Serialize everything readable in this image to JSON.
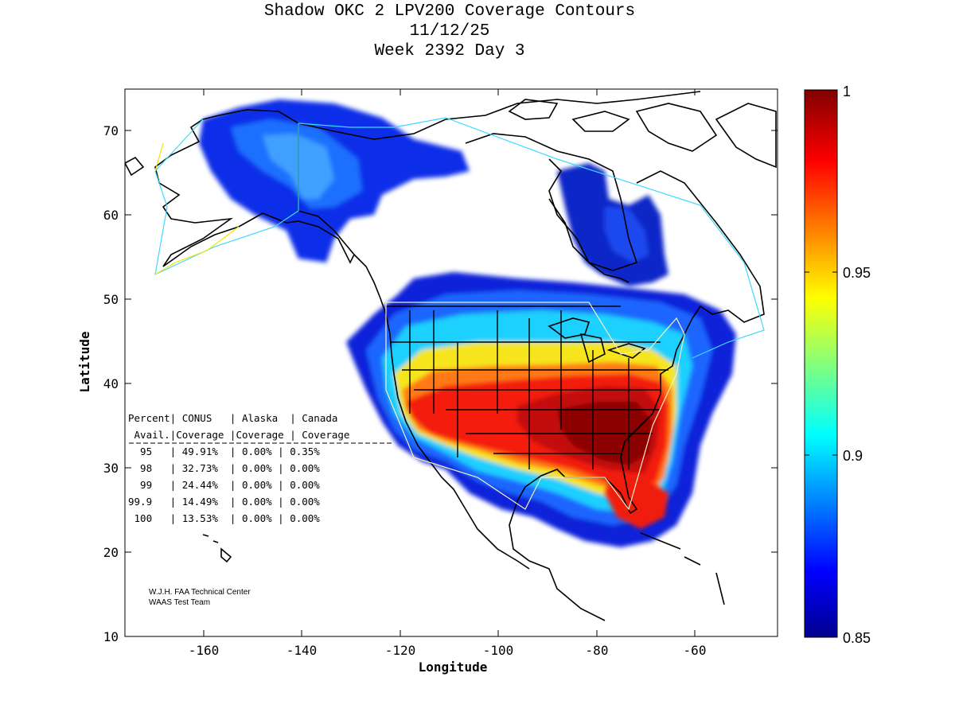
{
  "title": {
    "line1": "Shadow OKC 2 LPV200 Coverage Contours",
    "line2": "11/12/25",
    "line3": "Week 2392 Day 3"
  },
  "map": {
    "x_label": "Longitude",
    "y_label": "Latitude",
    "x_ticks": [
      "-160",
      "-140",
      "-120",
      "-100",
      "-80",
      "-60"
    ],
    "y_ticks": [
      "10",
      "20",
      "30",
      "40",
      "50",
      "60",
      "70"
    ],
    "colorbar_ticks": [
      "1",
      "0.95",
      "0.9",
      "0.85"
    ],
    "colorscale": "jet"
  },
  "table": {
    "header1": "Percent| CONUS   | Alaska  | Canada",
    "header2": " Avail.|Coverage |Coverage | Coverage",
    "rows": [
      "  95   | 49.91%  | 0.00% | 0.35%",
      "  98   | 32.73%  | 0.00% | 0.00%",
      "  99   | 24.44%  | 0.00% | 0.00%",
      "99.9   | 14.49%  | 0.00% | 0.00%",
      " 100   | 13.53%  | 0.00% | 0.00%"
    ]
  },
  "credit": {
    "line1": "W.J.H. FAA Technical Center",
    "line2": "WAAS Test Team"
  }
}
